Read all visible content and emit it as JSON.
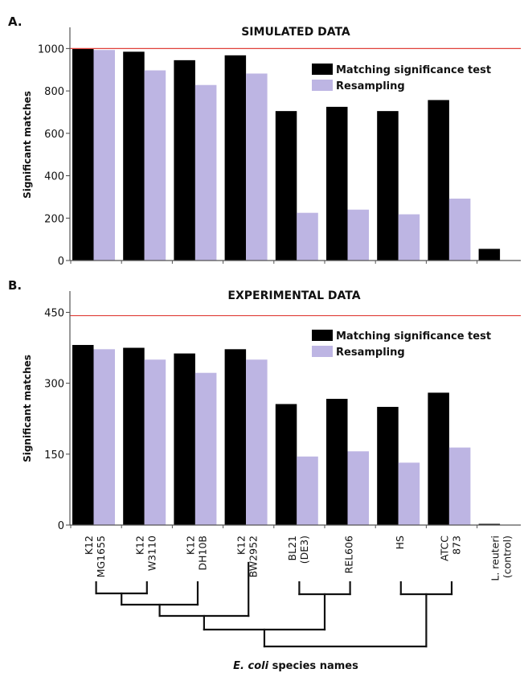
{
  "panels": [
    {
      "letter": "A."
    },
    {
      "letter": "B."
    }
  ],
  "categories": [
    [
      "K12",
      "MG1655"
    ],
    [
      "K12",
      "W3110"
    ],
    [
      "K12",
      "DH10B"
    ],
    [
      "K12",
      "BW2952"
    ],
    [
      "BL21",
      "(DE3)"
    ],
    [
      "REL606"
    ],
    [
      "HS"
    ],
    [
      "ATCC",
      "873"
    ],
    [
      "L. reuteri",
      "(control)"
    ]
  ],
  "x_axis_title": {
    "italic": "E. coli",
    "rest": " species names"
  },
  "colors": {
    "matching": "#000000",
    "resampling": "#bdb5e3",
    "reference_line": "#e0403a"
  },
  "chart_data": [
    {
      "type": "bar",
      "title": "SIMULATED DATA",
      "ylabel": "Significant matches",
      "xlabel": "E. coli species names",
      "ylim": [
        0,
        1100
      ],
      "yticks": [
        0,
        200,
        400,
        600,
        800,
        1000
      ],
      "reference_line": 1000,
      "legend": "top-right",
      "series": [
        {
          "name": "Matching significance test",
          "values": [
            1000,
            985,
            945,
            968,
            705,
            725,
            705,
            757,
            55
          ]
        },
        {
          "name": "Resampling",
          "values": [
            993,
            897,
            828,
            882,
            225,
            240,
            218,
            292,
            0
          ]
        }
      ]
    },
    {
      "type": "bar",
      "title": "EXPERIMENTAL DATA",
      "ylabel": "Significant matches",
      "xlabel": "E. coli species names",
      "ylim": [
        0,
        495
      ],
      "yticks": [
        0,
        150,
        300,
        450
      ],
      "reference_line": 443,
      "legend": "top-right",
      "series": [
        {
          "name": "Matching significance test",
          "values": [
            381,
            375,
            363,
            372,
            256,
            267,
            250,
            280,
            2
          ]
        },
        {
          "name": "Resampling",
          "values": [
            372,
            350,
            322,
            350,
            145,
            156,
            132,
            164,
            0
          ]
        }
      ]
    }
  ]
}
